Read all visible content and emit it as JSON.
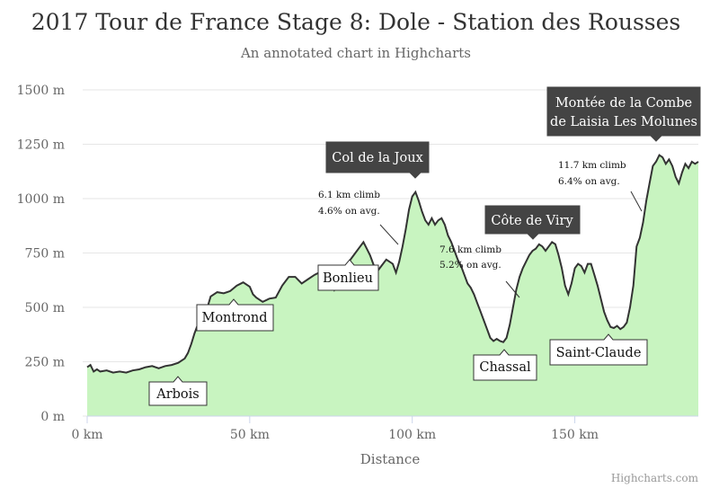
{
  "chart_data": {
    "type": "area",
    "title": "2017 Tour de France Stage 8: Dole - Station des Rousses",
    "subtitle": "An annotated chart in Highcharts",
    "xlabel": "Distance",
    "ylabel": "",
    "xlim": [
      0,
      188
    ],
    "ylim": [
      0,
      1500
    ],
    "x_ticks": [
      {
        "value": 0,
        "label": "0 km"
      },
      {
        "value": 50,
        "label": "50 km"
      },
      {
        "value": 100,
        "label": "100 km"
      },
      {
        "value": 150,
        "label": "150 km"
      }
    ],
    "y_ticks": [
      {
        "value": 0,
        "label": "0 m"
      },
      {
        "value": 250,
        "label": "250 m"
      },
      {
        "value": 500,
        "label": "500 m"
      },
      {
        "value": 750,
        "label": "750 m"
      },
      {
        "value": 1000,
        "label": "1000 m"
      },
      {
        "value": 1250,
        "label": "1250 m"
      },
      {
        "value": 1500,
        "label": "1500 m"
      }
    ],
    "grid": true,
    "legend": "none",
    "colors": {
      "area": "#c8f4c0",
      "line": "#333333",
      "grid": "#e6e6e6",
      "dark_label": "#444444"
    },
    "points": [
      [
        0,
        225
      ],
      [
        1,
        235
      ],
      [
        2,
        205
      ],
      [
        3,
        215
      ],
      [
        4,
        205
      ],
      [
        6,
        210
      ],
      [
        8,
        200
      ],
      [
        10,
        205
      ],
      [
        12,
        200
      ],
      [
        14,
        210
      ],
      [
        16,
        215
      ],
      [
        18,
        225
      ],
      [
        20,
        230
      ],
      [
        22,
        220
      ],
      [
        24,
        230
      ],
      [
        26,
        235
      ],
      [
        28,
        245
      ],
      [
        30,
        265
      ],
      [
        31,
        290
      ],
      [
        32,
        330
      ],
      [
        33,
        380
      ],
      [
        34,
        420
      ],
      [
        35,
        450
      ],
      [
        36,
        470
      ],
      [
        37,
        500
      ],
      [
        38,
        550
      ],
      [
        40,
        570
      ],
      [
        42,
        565
      ],
      [
        44,
        575
      ],
      [
        46,
        600
      ],
      [
        48,
        615
      ],
      [
        50,
        595
      ],
      [
        51,
        560
      ],
      [
        52,
        545
      ],
      [
        54,
        525
      ],
      [
        56,
        540
      ],
      [
        58,
        545
      ],
      [
        60,
        600
      ],
      [
        62,
        640
      ],
      [
        64,
        640
      ],
      [
        66,
        610
      ],
      [
        68,
        630
      ],
      [
        70,
        650
      ],
      [
        72,
        665
      ],
      [
        74,
        640
      ],
      [
        76,
        580
      ],
      [
        78,
        640
      ],
      [
        80,
        700
      ],
      [
        82,
        740
      ],
      [
        84,
        780
      ],
      [
        85,
        800
      ],
      [
        86,
        770
      ],
      [
        87,
        740
      ],
      [
        88,
        700
      ],
      [
        89,
        660
      ],
      [
        90,
        680
      ],
      [
        92,
        720
      ],
      [
        94,
        700
      ],
      [
        95,
        660
      ],
      [
        96,
        710
      ],
      [
        97,
        780
      ],
      [
        98,
        860
      ],
      [
        99,
        950
      ],
      [
        100,
        1010
      ],
      [
        101,
        1030
      ],
      [
        102,
        990
      ],
      [
        103,
        940
      ],
      [
        104,
        900
      ],
      [
        105,
        880
      ],
      [
        106,
        910
      ],
      [
        107,
        880
      ],
      [
        108,
        900
      ],
      [
        109,
        910
      ],
      [
        110,
        880
      ],
      [
        111,
        830
      ],
      [
        112,
        800
      ],
      [
        113,
        760
      ],
      [
        114,
        720
      ],
      [
        115,
        690
      ],
      [
        116,
        650
      ],
      [
        117,
        610
      ],
      [
        118,
        590
      ],
      [
        119,
        560
      ],
      [
        120,
        520
      ],
      [
        121,
        480
      ],
      [
        122,
        440
      ],
      [
        123,
        400
      ],
      [
        124,
        360
      ],
      [
        125,
        345
      ],
      [
        126,
        355
      ],
      [
        127,
        345
      ],
      [
        128,
        340
      ],
      [
        129,
        360
      ],
      [
        130,
        420
      ],
      [
        131,
        500
      ],
      [
        132,
        580
      ],
      [
        133,
        640
      ],
      [
        134,
        680
      ],
      [
        135,
        710
      ],
      [
        136,
        740
      ],
      [
        137,
        760
      ],
      [
        138,
        770
      ],
      [
        139,
        790
      ],
      [
        140,
        780
      ],
      [
        141,
        760
      ],
      [
        142,
        780
      ],
      [
        143,
        800
      ],
      [
        144,
        790
      ],
      [
        145,
        740
      ],
      [
        146,
        680
      ],
      [
        147,
        600
      ],
      [
        148,
        560
      ],
      [
        149,
        610
      ],
      [
        150,
        680
      ],
      [
        151,
        700
      ],
      [
        152,
        690
      ],
      [
        153,
        660
      ],
      [
        154,
        700
      ],
      [
        155,
        700
      ],
      [
        156,
        650
      ],
      [
        157,
        600
      ],
      [
        158,
        540
      ],
      [
        159,
        480
      ],
      [
        160,
        440
      ],
      [
        161,
        410
      ],
      [
        162,
        405
      ],
      [
        163,
        415
      ],
      [
        164,
        400
      ],
      [
        165,
        410
      ],
      [
        166,
        430
      ],
      [
        167,
        500
      ],
      [
        168,
        600
      ],
      [
        169,
        780
      ],
      [
        170,
        820
      ],
      [
        171,
        890
      ],
      [
        172,
        990
      ],
      [
        173,
        1070
      ],
      [
        174,
        1150
      ],
      [
        175,
        1170
      ],
      [
        176,
        1200
      ],
      [
        177,
        1190
      ],
      [
        178,
        1160
      ],
      [
        179,
        1180
      ],
      [
        180,
        1150
      ],
      [
        181,
        1100
      ],
      [
        182,
        1070
      ],
      [
        183,
        1120
      ],
      [
        184,
        1160
      ],
      [
        185,
        1140
      ],
      [
        186,
        1170
      ],
      [
        187,
        1160
      ],
      [
        188,
        1170
      ]
    ],
    "annotations": {
      "arbois": "Arbois",
      "montrond": "Montrond",
      "bonlieu": "Bonlieu",
      "col_de_la_joux": "Col de la Joux",
      "chassal": "Chassal",
      "cote_de_viry": "Côte de Viry",
      "saint_claude": "Saint-Claude",
      "montee_line1": "Montée de la Combe",
      "montee_line2": "de Laisia Les Molunes",
      "climb1_line1": "6.1 km climb",
      "climb1_line2": "4.6% on avg.",
      "climb2_line1": "7.6 km climb",
      "climb2_line2": "5.2% on avg.",
      "climb3_line1": "11.7 km climb",
      "climb3_line2": "6.4% on avg."
    }
  },
  "credit": "Highcharts.com"
}
